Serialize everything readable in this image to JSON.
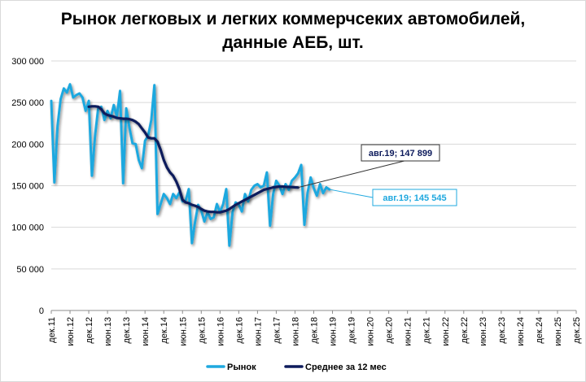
{
  "chart_data": {
    "type": "line",
    "title_line1": "Рынок легковых и легких коммерчсеких автомобилей,",
    "title_line2": "данные АЕБ, шт.",
    "xlabel": "",
    "ylabel": "",
    "ylim": [
      0,
      300000
    ],
    "yticks": [
      "0",
      "50 000",
      "100 000",
      "150 000",
      "200 000",
      "250 000",
      "300 000"
    ],
    "xticks": [
      "дек.11",
      "июн.12",
      "дек.12",
      "июн.13",
      "дек.13",
      "июн.14",
      "дек.14",
      "июн.15",
      "дек.15",
      "июн.16",
      "дек.16",
      "июн.17",
      "дек.17",
      "июн.18",
      "дек.18",
      "июн.19",
      "дек.19",
      "июн.20",
      "дек.20",
      "июн.21",
      "дек.21",
      "июн.22",
      "дек.22",
      "июн.23",
      "дек.23",
      "июн.24",
      "дек.24",
      "июн.25",
      "дек.25"
    ],
    "x_start": "дек.11",
    "grid": true,
    "legend_position": "bottom",
    "series": [
      {
        "name": "Рынок",
        "color": "#1fa8df",
        "values": [
          252000,
          154000,
          222000,
          254000,
          267000,
          262000,
          272000,
          256000,
          259000,
          261000,
          256000,
          240000,
          252000,
          162000,
          210000,
          243000,
          245000,
          229000,
          240000,
          231000,
          247000,
          233000,
          264000,
          153000,
          243000,
          220000,
          201000,
          200000,
          181000,
          171000,
          204000,
          210000,
          229000,
          271000,
          116000,
          128000,
          140000,
          135000,
          128000,
          140000,
          135000,
          142000,
          131000,
          132000,
          146000,
          81000,
          106000,
          127000,
          120000,
          107000,
          118000,
          110000,
          112000,
          128000,
          118000,
          128000,
          146000,
          78000,
          118000,
          130000,
          127000,
          119000,
          140000,
          131000,
          145000,
          150000,
          152000,
          148000,
          150000,
          166000,
          102000,
          140000,
          156000,
          150000,
          140000,
          152000,
          145000,
          156000,
          160000,
          165000,
          175000,
          103000,
          141000,
          160000,
          147000,
          138000,
          152000,
          141000,
          148000,
          145545
        ],
        "last_label": "авг.19; 145 545"
      },
      {
        "name": "Среднее за 12 мес",
        "color": "#0d1b5c",
        "start_index": 12,
        "values": [
          245000,
          245500,
          245500,
          245000,
          242000,
          237000,
          235000,
          234000,
          233000,
          231500,
          231000,
          230500,
          230500,
          230000,
          229000,
          227000,
          224000,
          219000,
          214000,
          208000,
          207000,
          207000,
          203000,
          193000,
          181000,
          172000,
          166000,
          162000,
          155000,
          146000,
          133000,
          130000,
          129000,
          127000,
          126000,
          124500,
          122000,
          120000,
          119000,
          118500,
          118500,
          118000,
          118000,
          119000,
          120000,
          122000,
          124500,
          127000,
          129000,
          131000,
          133000,
          135000,
          137000,
          139000,
          141000,
          143000,
          145000,
          146000,
          147000,
          148000,
          148500,
          149000,
          149000,
          148700,
          148500,
          148300,
          148000,
          147899
        ],
        "last_label": "авг.19; 147 899"
      }
    ]
  }
}
